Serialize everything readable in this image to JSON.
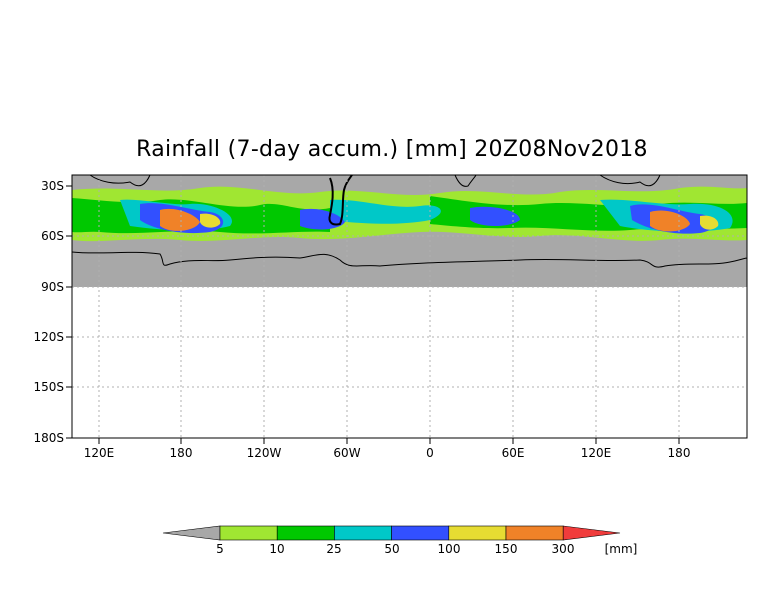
{
  "title": "Rainfall (7-day accum.) [mm] 20Z08Nov2018",
  "lat_labels": [
    "30S",
    "60S",
    "90S",
    "120S",
    "150S",
    "180S"
  ],
  "lon_labels": [
    "120E",
    "180",
    "120W",
    "60W",
    "0",
    "60E",
    "120E",
    "180"
  ],
  "legend": {
    "labels": [
      "5",
      "10",
      "25",
      "50",
      "100",
      "150",
      "300"
    ],
    "unit": "[mm]",
    "colors": [
      "#a8a8a8",
      "#a0e632",
      "#00c800",
      "#00c8c8",
      "#3250ff",
      "#e6dc32",
      "#f08228",
      "#f03c3c"
    ]
  },
  "colors": {
    "land_no_data": "#a8a8a8",
    "grid": "#b0b0b0"
  }
}
